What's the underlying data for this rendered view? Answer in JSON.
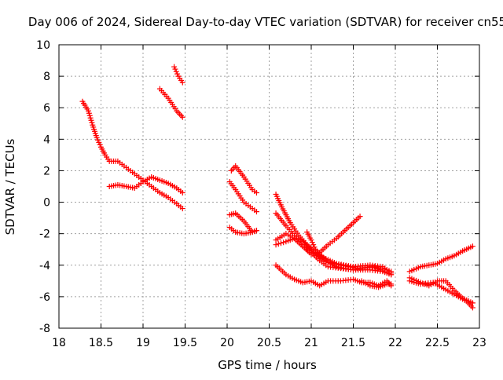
{
  "chart_data": {
    "type": "scatter",
    "title": "Day 006 of 2024, Sidereal Day-to-day VTEC variation (SDTVAR) for receiver cn55",
    "xlabel": "GPS time / hours",
    "ylabel": "SDTVAR / TECUs",
    "xlim": [
      18,
      23
    ],
    "ylim": [
      -8,
      10
    ],
    "xticks": [
      "18",
      "18.5",
      "19",
      "19.5",
      "20",
      "20.5",
      "21",
      "21.5",
      "22",
      "22.5",
      "23"
    ],
    "yticks": [
      "-8",
      "-6",
      "-4",
      "-2",
      "0",
      "2",
      "4",
      "6",
      "8",
      "10"
    ],
    "grid": true,
    "marker": "plus",
    "color": "#ff0000",
    "series": [
      {
        "name": "t1",
        "points": [
          [
            18.28,
            6.4
          ],
          [
            18.35,
            5.8
          ],
          [
            18.4,
            4.9
          ],
          [
            18.45,
            4.1
          ],
          [
            18.5,
            3.5
          ],
          [
            18.55,
            3.0
          ],
          [
            18.6,
            2.6
          ],
          [
            18.7,
            2.6
          ],
          [
            18.8,
            2.2
          ],
          [
            18.9,
            1.8
          ],
          [
            19.0,
            1.4
          ],
          [
            19.1,
            1.0
          ],
          [
            19.2,
            0.6
          ],
          [
            19.3,
            0.3
          ],
          [
            19.4,
            -0.1
          ],
          [
            19.47,
            -0.4
          ]
        ]
      },
      {
        "name": "t2",
        "points": [
          [
            18.6,
            1.0
          ],
          [
            18.7,
            1.1
          ],
          [
            18.8,
            1.0
          ],
          [
            18.9,
            0.9
          ],
          [
            19.0,
            1.3
          ],
          [
            19.1,
            1.6
          ],
          [
            19.2,
            1.4
          ],
          [
            19.3,
            1.2
          ],
          [
            19.4,
            0.9
          ],
          [
            19.47,
            0.6
          ]
        ]
      },
      {
        "name": "t3",
        "points": [
          [
            19.2,
            7.2
          ],
          [
            19.3,
            6.6
          ],
          [
            19.4,
            5.8
          ],
          [
            19.47,
            5.4
          ]
        ]
      },
      {
        "name": "t4",
        "points": [
          [
            19.37,
            8.6
          ],
          [
            19.42,
            8.0
          ],
          [
            19.47,
            7.6
          ]
        ]
      },
      {
        "name": "t5",
        "points": [
          [
            20.05,
            2.0
          ],
          [
            20.1,
            2.3
          ],
          [
            20.2,
            1.6
          ],
          [
            20.3,
            0.8
          ],
          [
            20.35,
            0.6
          ]
        ]
      },
      {
        "name": "t6",
        "points": [
          [
            20.03,
            1.3
          ],
          [
            20.1,
            0.8
          ],
          [
            20.2,
            0.0
          ],
          [
            20.3,
            -0.4
          ],
          [
            20.35,
            -0.6
          ]
        ]
      },
      {
        "name": "t7",
        "points": [
          [
            20.03,
            -0.8
          ],
          [
            20.1,
            -0.7
          ],
          [
            20.2,
            -1.2
          ],
          [
            20.3,
            -1.9
          ],
          [
            20.35,
            -1.8
          ]
        ]
      },
      {
        "name": "t8",
        "points": [
          [
            20.03,
            -1.6
          ],
          [
            20.1,
            -1.9
          ],
          [
            20.2,
            -2.0
          ],
          [
            20.3,
            -1.9
          ],
          [
            20.35,
            -1.8
          ]
        ]
      },
      {
        "name": "t9",
        "points": [
          [
            20.58,
            0.5
          ],
          [
            20.65,
            -0.3
          ],
          [
            20.75,
            -1.3
          ],
          [
            20.85,
            -2.1
          ],
          [
            20.95,
            -2.7
          ],
          [
            21.05,
            -3.2
          ],
          [
            21.15,
            -3.7
          ],
          [
            21.3,
            -4.1
          ],
          [
            21.5,
            -4.3
          ],
          [
            21.7,
            -4.3
          ],
          [
            21.85,
            -4.4
          ],
          [
            21.95,
            -4.6
          ]
        ]
      },
      {
        "name": "t10",
        "points": [
          [
            20.58,
            -0.7
          ],
          [
            20.7,
            -1.5
          ],
          [
            20.8,
            -2.1
          ],
          [
            20.9,
            -2.5
          ],
          [
            21.0,
            -3.0
          ],
          [
            21.1,
            -3.4
          ],
          [
            21.3,
            -3.9
          ],
          [
            21.5,
            -4.1
          ],
          [
            21.7,
            -4.0
          ],
          [
            21.85,
            -4.1
          ],
          [
            21.95,
            -4.5
          ]
        ]
      },
      {
        "name": "t11",
        "points": [
          [
            20.58,
            -2.7
          ],
          [
            20.7,
            -2.5
          ],
          [
            20.8,
            -2.3
          ],
          [
            20.9,
            -2.8
          ],
          [
            21.0,
            -3.3
          ],
          [
            21.1,
            -3.2
          ],
          [
            21.2,
            -2.7
          ],
          [
            21.3,
            -2.3
          ],
          [
            21.4,
            -1.8
          ],
          [
            21.5,
            -1.3
          ],
          [
            21.58,
            -0.9
          ]
        ]
      },
      {
        "name": "t12",
        "points": [
          [
            20.58,
            -2.4
          ],
          [
            20.7,
            -2.0
          ],
          [
            20.8,
            -2.3
          ],
          [
            20.9,
            -2.8
          ],
          [
            21.0,
            -3.2
          ],
          [
            21.1,
            -3.7
          ],
          [
            21.2,
            -4.1
          ],
          [
            21.35,
            -4.2
          ],
          [
            21.5,
            -4.3
          ],
          [
            21.7,
            -4.1
          ],
          [
            21.85,
            -4.2
          ],
          [
            21.95,
            -4.4
          ]
        ]
      },
      {
        "name": "t13",
        "points": [
          [
            20.95,
            -1.9
          ],
          [
            21.0,
            -2.4
          ],
          [
            21.05,
            -3.0
          ],
          [
            21.1,
            -3.3
          ],
          [
            21.2,
            -3.8
          ],
          [
            21.35,
            -4.0
          ],
          [
            21.55,
            -4.2
          ],
          [
            21.75,
            -4.1
          ],
          [
            21.95,
            -4.6
          ]
        ]
      },
      {
        "name": "t14",
        "points": [
          [
            20.58,
            -4.0
          ],
          [
            20.7,
            -4.6
          ],
          [
            20.8,
            -4.9
          ],
          [
            20.9,
            -5.1
          ],
          [
            21.0,
            -5.0
          ],
          [
            21.1,
            -5.3
          ],
          [
            21.2,
            -5.0
          ],
          [
            21.35,
            -5.0
          ],
          [
            21.5,
            -4.9
          ],
          [
            21.6,
            -5.1
          ],
          [
            21.7,
            -5.1
          ],
          [
            21.8,
            -5.3
          ],
          [
            21.9,
            -5.0
          ],
          [
            21.95,
            -5.3
          ]
        ]
      },
      {
        "name": "t15",
        "points": [
          [
            21.6,
            -5.0
          ],
          [
            21.7,
            -5.3
          ],
          [
            21.8,
            -5.4
          ],
          [
            21.9,
            -5.2
          ],
          [
            21.95,
            -5.2
          ]
        ]
      },
      {
        "name": "t16",
        "points": [
          [
            22.17,
            -4.4
          ],
          [
            22.3,
            -4.1
          ],
          [
            22.4,
            -4.0
          ],
          [
            22.5,
            -3.9
          ],
          [
            22.6,
            -3.6
          ],
          [
            22.7,
            -3.4
          ],
          [
            22.8,
            -3.1
          ],
          [
            22.92,
            -2.8
          ]
        ]
      },
      {
        "name": "t17",
        "points": [
          [
            22.17,
            -4.8
          ],
          [
            22.3,
            -5.1
          ],
          [
            22.4,
            -5.3
          ],
          [
            22.5,
            -5.0
          ],
          [
            22.6,
            -5.0
          ],
          [
            22.7,
            -5.6
          ],
          [
            22.8,
            -6.1
          ],
          [
            22.92,
            -6.4
          ]
        ]
      },
      {
        "name": "t18",
        "points": [
          [
            22.17,
            -5.0
          ],
          [
            22.3,
            -5.2
          ],
          [
            22.45,
            -5.1
          ],
          [
            22.55,
            -5.4
          ],
          [
            22.65,
            -5.7
          ],
          [
            22.75,
            -6.0
          ],
          [
            22.85,
            -6.3
          ],
          [
            22.92,
            -6.7
          ]
        ]
      }
    ]
  }
}
